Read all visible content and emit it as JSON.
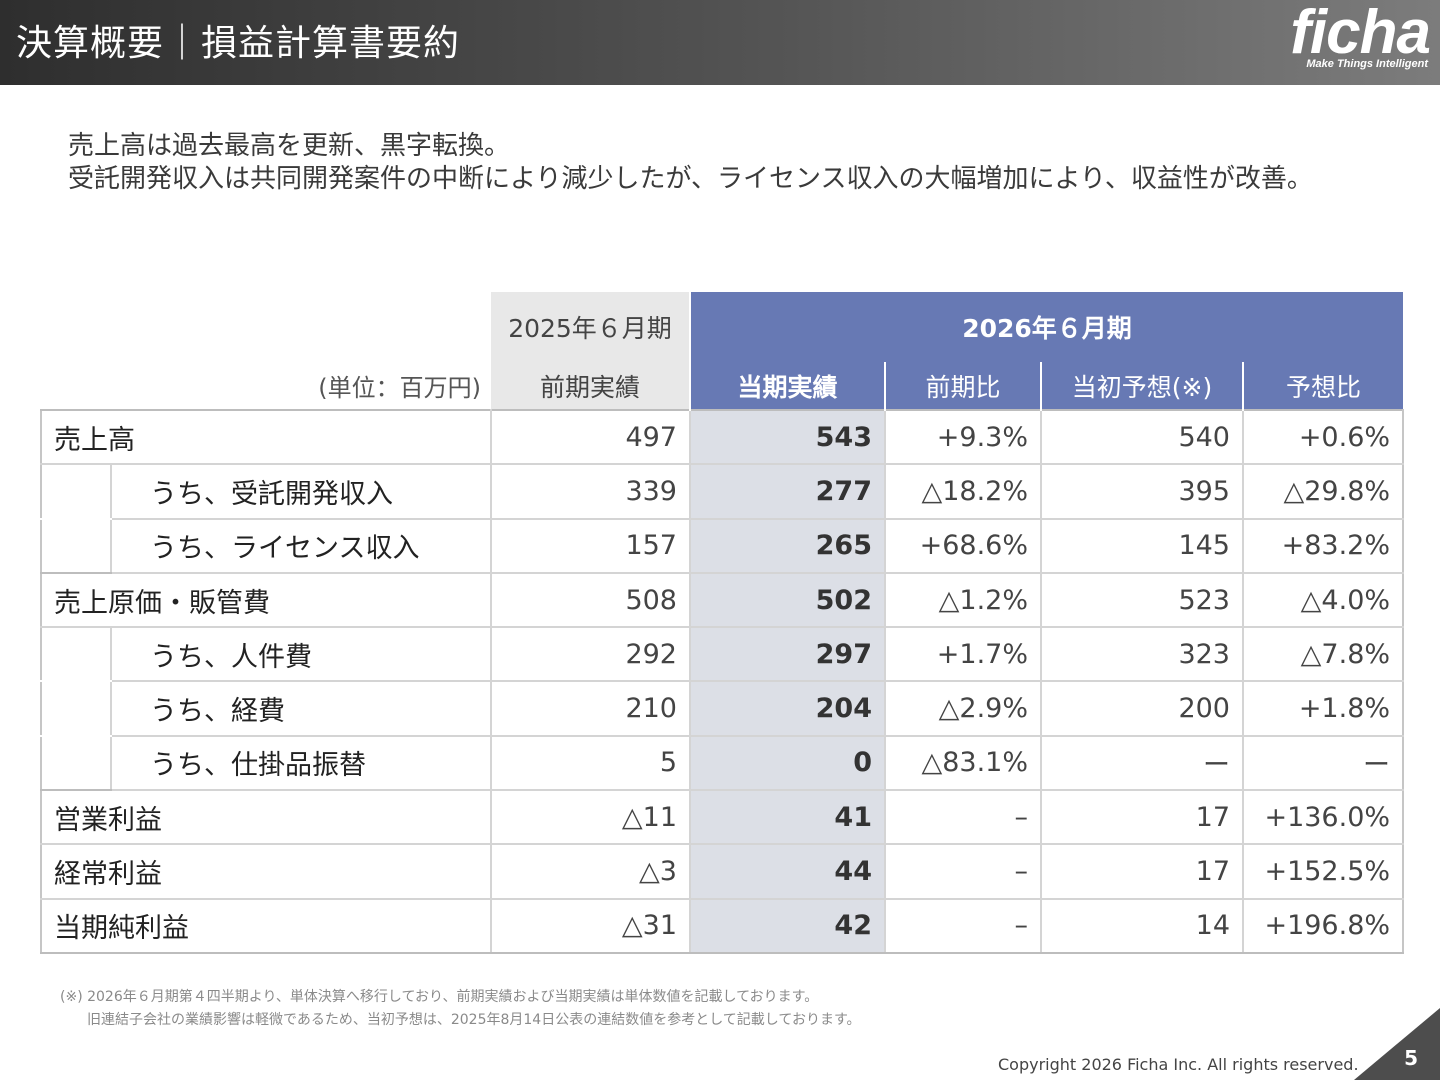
{
  "header": {
    "title": "決算概要｜損益計算書要約",
    "logo_text": "ficha",
    "logo_tagline": "Make Things Intelligent"
  },
  "summary": {
    "line1": "売上高は過去最高を更新、黒字転換。",
    "line2": "受託開発収入は共同開発案件の中断により減少したが、ライセンス収入の大幅増加により、収益性が改善。"
  },
  "table": {
    "unit_label": "(単位：百万円)",
    "prev_period": "2025年６月期",
    "cur_period": "2026年６月期",
    "columns": [
      "前期実績",
      "当期実績",
      "前期比",
      "当初予想(※)",
      "予想比"
    ],
    "rows": [
      {
        "label": "売上高",
        "indent": false,
        "values": [
          "497",
          "543",
          "+9.3%",
          "540",
          "+0.6%"
        ]
      },
      {
        "label": "うち、受託開発収入",
        "indent": true,
        "values": [
          "339",
          "277",
          "△18.2%",
          "395",
          "△29.8%"
        ]
      },
      {
        "label": "うち、ライセンス収入",
        "indent": true,
        "values": [
          "157",
          "265",
          "+68.6%",
          "145",
          "+83.2%"
        ]
      },
      {
        "label": "売上原価・販管費",
        "indent": false,
        "values": [
          "508",
          "502",
          "△1.2%",
          "523",
          "△4.0%"
        ]
      },
      {
        "label": "うち、人件費",
        "indent": true,
        "values": [
          "292",
          "297",
          "+1.7%",
          "323",
          "△7.8%"
        ]
      },
      {
        "label": "うち、経費",
        "indent": true,
        "values": [
          "210",
          "204",
          "△2.9%",
          "200",
          "+1.8%"
        ]
      },
      {
        "label": "うち、仕掛品振替",
        "indent": true,
        "values": [
          "5",
          "0",
          "△83.1%",
          "ー",
          "ー"
        ]
      },
      {
        "label": "営業利益",
        "indent": false,
        "values": [
          "△11",
          "41",
          "–",
          "17",
          "+136.0%"
        ]
      },
      {
        "label": "経常利益",
        "indent": false,
        "values": [
          "△3",
          "44",
          "–",
          "17",
          "+152.5%"
        ]
      },
      {
        "label": "当期純利益",
        "indent": false,
        "values": [
          "△31",
          "42",
          "–",
          "14",
          "+196.8%"
        ]
      }
    ]
  },
  "footnote": {
    "line1": "(※) 2026年６月期第４四半期より、単体決算へ移行しており、前期実績および当期実績は単体数値を記載しております。",
    "line2": "旧連結子会社の業績影響は軽微であるため、当初予想は、2025年8月14日公表の連結数値を参考として記載しております。"
  },
  "footer": {
    "copyright": "Copyright 2026 Ficha Inc. All rights reserved.",
    "page_number": "5"
  },
  "colors": {
    "accent": "#6779b4",
    "current_col_bg": "#dcdfe6",
    "prev_header_bg": "#e8e8e8",
    "corner": "#4d4d4d"
  }
}
